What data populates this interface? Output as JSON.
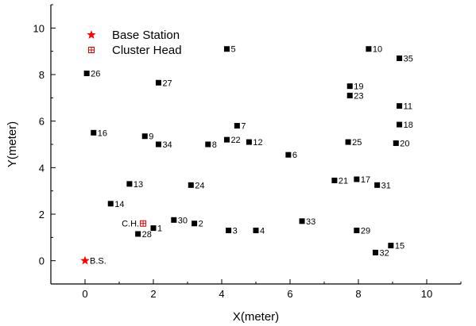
{
  "chart_data": {
    "type": "scatter",
    "xlabel": "X(meter)",
    "ylabel": "Y(meter)",
    "xlim": [
      -1,
      11
    ],
    "ylim": [
      -1,
      11
    ],
    "xticks": [
      0,
      2,
      4,
      6,
      8,
      10
    ],
    "yticks": [
      0,
      2,
      4,
      6,
      8,
      10
    ],
    "legend_position": "top-left",
    "legend": [
      {
        "label": "Base Station",
        "marker": "star",
        "color": "#ff0000"
      },
      {
        "label": "Cluster Head",
        "marker": "crossed-square",
        "color": "#dd0000"
      }
    ],
    "nodes": [
      {
        "label": "1",
        "x": 2.0,
        "y": 1.4
      },
      {
        "label": "2",
        "x": 3.2,
        "y": 1.6
      },
      {
        "label": "3",
        "x": 4.2,
        "y": 1.3
      },
      {
        "label": "4",
        "x": 5.0,
        "y": 1.3
      },
      {
        "label": "5",
        "x": 4.15,
        "y": 9.1
      },
      {
        "label": "6",
        "x": 5.95,
        "y": 4.55
      },
      {
        "label": "7",
        "x": 4.45,
        "y": 5.8
      },
      {
        "label": "8",
        "x": 3.6,
        "y": 5.0
      },
      {
        "label": "9",
        "x": 1.75,
        "y": 5.35
      },
      {
        "label": "10",
        "x": 8.3,
        "y": 9.1
      },
      {
        "label": "11",
        "x": 9.2,
        "y": 6.65
      },
      {
        "label": "12",
        "x": 4.8,
        "y": 5.1
      },
      {
        "label": "13",
        "x": 1.3,
        "y": 3.3
      },
      {
        "label": "14",
        "x": 0.75,
        "y": 2.45
      },
      {
        "label": "15",
        "x": 8.95,
        "y": 0.65
      },
      {
        "label": "16",
        "x": 0.25,
        "y": 5.5
      },
      {
        "label": "17",
        "x": 7.95,
        "y": 3.5
      },
      {
        "label": "18",
        "x": 9.2,
        "y": 5.85
      },
      {
        "label": "19",
        "x": 7.75,
        "y": 7.5
      },
      {
        "label": "20",
        "x": 9.1,
        "y": 5.05
      },
      {
        "label": "21",
        "x": 7.3,
        "y": 3.45
      },
      {
        "label": "22",
        "x": 4.15,
        "y": 5.2
      },
      {
        "label": "23",
        "x": 7.75,
        "y": 7.1
      },
      {
        "label": "24",
        "x": 3.1,
        "y": 3.25
      },
      {
        "label": "25",
        "x": 7.7,
        "y": 5.1
      },
      {
        "label": "26",
        "x": 0.05,
        "y": 8.05
      },
      {
        "label": "27",
        "x": 2.15,
        "y": 7.65
      },
      {
        "label": "28",
        "x": 1.55,
        "y": 1.15
      },
      {
        "label": "29",
        "x": 7.95,
        "y": 1.3
      },
      {
        "label": "30",
        "x": 2.6,
        "y": 1.75
      },
      {
        "label": "31",
        "x": 8.55,
        "y": 3.25
      },
      {
        "label": "32",
        "x": 8.5,
        "y": 0.35
      },
      {
        "label": "33",
        "x": 6.35,
        "y": 1.7
      },
      {
        "label": "34",
        "x": 2.15,
        "y": 5.0
      },
      {
        "label": "35",
        "x": 9.2,
        "y": 8.7
      }
    ],
    "base_station": {
      "label": "B.S.",
      "x": 0.0,
      "y": 0.0
    },
    "cluster_head": {
      "label": "C.H.",
      "x": 1.7,
      "y": 1.6
    }
  }
}
